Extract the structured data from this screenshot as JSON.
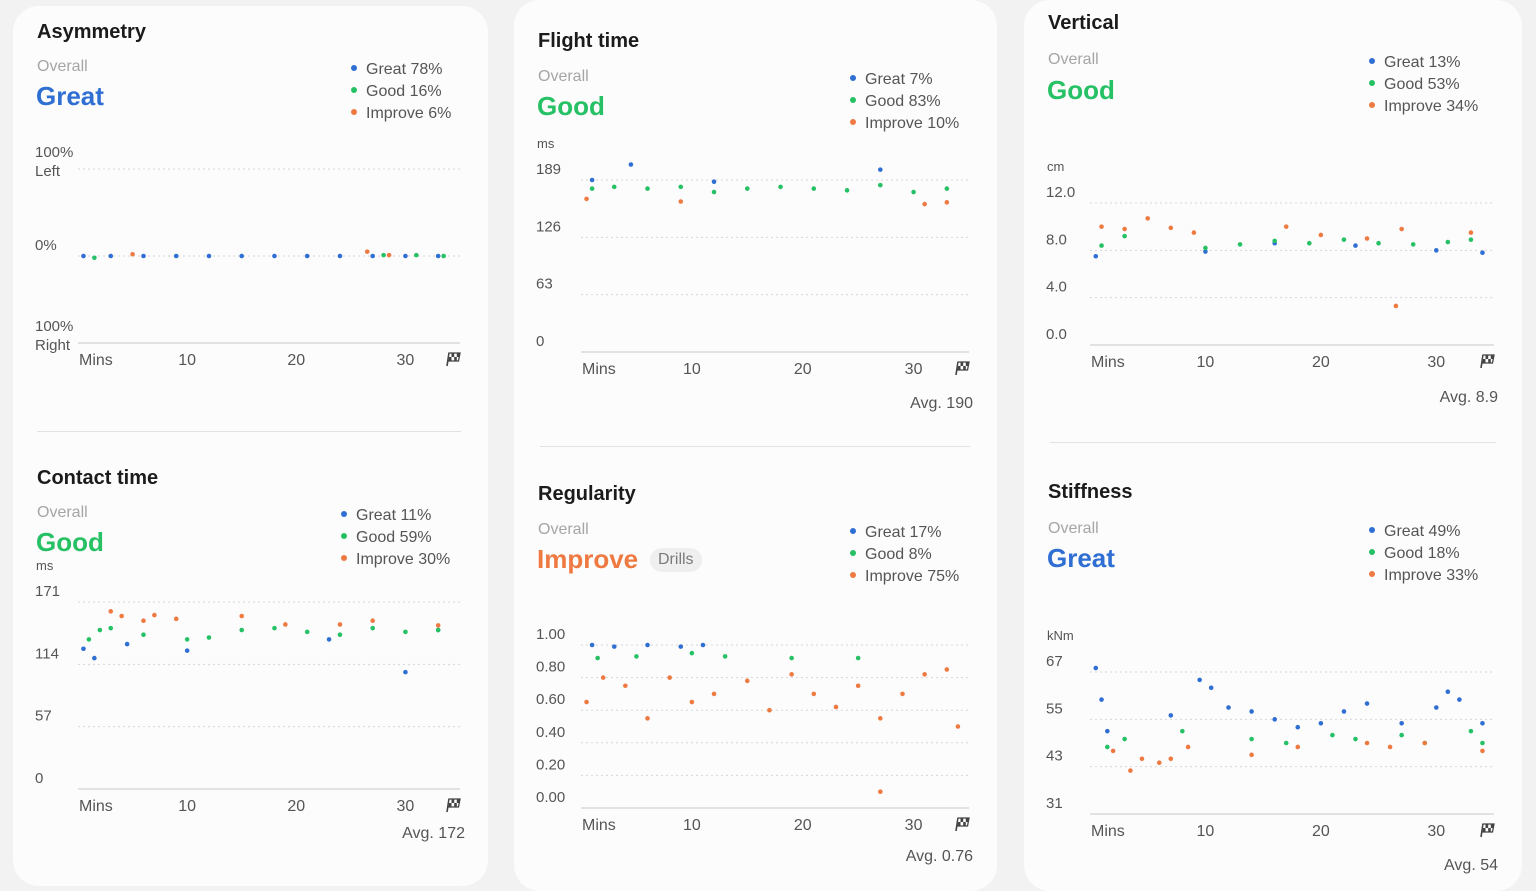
{
  "colors": {
    "great": "#2f6fd3",
    "good": "#26c065",
    "improve": "#ee7a42",
    "grid": "#d6d6d6",
    "axis_text": "#555555"
  },
  "legend_labels": {
    "great": "Great",
    "good": "Good",
    "improve": "Improve"
  },
  "overall_label": "Overall",
  "x_axis": {
    "unit_label": "Mins",
    "ticks": [
      "10",
      "20",
      "30"
    ],
    "finish_icon": "checkered-flag-icon"
  },
  "cards": {
    "asymmetry": {
      "title": "Asymmetry",
      "rating": "Great",
      "great_pct": "78%",
      "good_pct": "16%",
      "improve_pct": "6%",
      "avg": ""
    },
    "contact": {
      "title": "Contact time",
      "rating": "Good",
      "great_pct": "11%",
      "good_pct": "59%",
      "improve_pct": "30%",
      "avg": "Avg. 172"
    },
    "flight": {
      "title": "Flight time",
      "rating": "Good",
      "great_pct": "7%",
      "good_pct": "83%",
      "improve_pct": "10%",
      "avg": "Avg. 190"
    },
    "regularity": {
      "title": "Regularity",
      "rating": "Improve",
      "badge": "Drills",
      "great_pct": "17%",
      "good_pct": "8%",
      "improve_pct": "75%",
      "avg": "Avg. 0.76"
    },
    "vertical": {
      "title": "Vertical",
      "rating": "Good",
      "great_pct": "13%",
      "good_pct": "53%",
      "improve_pct": "34%",
      "avg": "Avg. 8.9"
    },
    "stiffness": {
      "title": "Stiffness",
      "rating": "Great",
      "great_pct": "49%",
      "good_pct": "18%",
      "improve_pct": "33%",
      "avg": "Avg. 54"
    }
  },
  "chart_data": [
    {
      "id": "asymmetry",
      "type": "scatter",
      "ylabel": "",
      "y_ticks": [
        "100%\nLeft",
        "0%",
        "100%\nRight"
      ],
      "ylim": [
        -100,
        100
      ],
      "xlim": [
        0,
        35
      ],
      "x_label": "Mins",
      "x_ticks": [
        10,
        20,
        30
      ],
      "series": [
        {
          "name": "Great",
          "points": [
            [
              0.5,
              0
            ],
            [
              3,
              0
            ],
            [
              6,
              0
            ],
            [
              9,
              0
            ],
            [
              12,
              0
            ],
            [
              15,
              0
            ],
            [
              18,
              0
            ],
            [
              21,
              0
            ],
            [
              24,
              0
            ],
            [
              27,
              0
            ],
            [
              30,
              0
            ],
            [
              33,
              0
            ]
          ]
        },
        {
          "name": "Good",
          "points": [
            [
              1.5,
              -2
            ],
            [
              28,
              1
            ],
            [
              31,
              1
            ],
            [
              33.5,
              0
            ]
          ]
        },
        {
          "name": "Improve",
          "points": [
            [
              5,
              2
            ],
            [
              26.5,
              5
            ],
            [
              28.5,
              1
            ]
          ]
        }
      ]
    },
    {
      "id": "contact",
      "type": "scatter",
      "ylabel": "ms",
      "y_ticks": [
        "171",
        "114",
        "57",
        "0"
      ],
      "ylim": [
        0,
        200
      ],
      "xlim": [
        0,
        35
      ],
      "x_label": "Mins",
      "x_ticks": [
        10,
        20,
        30
      ],
      "series": [
        {
          "name": "Great",
          "points": [
            [
              0.5,
              150
            ],
            [
              1.5,
              140
            ],
            [
              4.5,
              155
            ],
            [
              10,
              148
            ],
            [
              23,
              160
            ],
            [
              30,
              125
            ],
            [
              33,
              170
            ]
          ]
        },
        {
          "name": "Good",
          "points": [
            [
              1,
              160
            ],
            [
              2,
              170
            ],
            [
              3,
              172
            ],
            [
              6,
              165
            ],
            [
              10,
              160
            ],
            [
              12,
              162
            ],
            [
              15,
              170
            ],
            [
              18,
              172
            ],
            [
              21,
              168
            ],
            [
              24,
              165
            ],
            [
              27,
              172
            ],
            [
              30,
              168
            ],
            [
              33,
              170
            ]
          ]
        },
        {
          "name": "Improve",
          "points": [
            [
              3,
              190
            ],
            [
              4,
              185
            ],
            [
              6,
              180
            ],
            [
              7,
              186
            ],
            [
              9,
              182
            ],
            [
              15,
              185
            ],
            [
              19,
              176
            ],
            [
              24,
              176
            ],
            [
              27,
              180
            ],
            [
              33,
              175
            ]
          ]
        }
      ]
    },
    {
      "id": "flight",
      "type": "scatter",
      "ylabel": "ms",
      "y_ticks": [
        "189",
        "126",
        "63",
        "0"
      ],
      "ylim": [
        0,
        200
      ],
      "xlim": [
        0,
        35
      ],
      "x_label": "Mins",
      "x_ticks": [
        10,
        20,
        30
      ],
      "series": [
        {
          "name": "Great",
          "points": [
            [
              1,
              200
            ],
            [
              4.5,
              218
            ],
            [
              12,
              198
            ],
            [
              27,
              212
            ]
          ]
        },
        {
          "name": "Good",
          "points": [
            [
              1,
              190
            ],
            [
              3,
              192
            ],
            [
              6,
              190
            ],
            [
              9,
              192
            ],
            [
              12,
              186
            ],
            [
              15,
              190
            ],
            [
              18,
              192
            ],
            [
              21,
              190
            ],
            [
              24,
              188
            ],
            [
              27,
              194
            ],
            [
              30,
              186
            ],
            [
              33,
              190
            ]
          ]
        },
        {
          "name": "Improve",
          "points": [
            [
              0.5,
              178
            ],
            [
              9,
              175
            ],
            [
              31,
              172
            ],
            [
              33,
              174
            ]
          ]
        }
      ]
    },
    {
      "id": "regularity",
      "type": "scatter",
      "ylabel": "",
      "y_ticks": [
        "1.00",
        "0.80",
        "0.60",
        "0.40",
        "0.20",
        "0.00"
      ],
      "ylim": [
        0,
        1
      ],
      "xlim": [
        0,
        35
      ],
      "x_label": "Mins",
      "x_ticks": [
        10,
        20,
        30
      ],
      "series": [
        {
          "name": "Great",
          "points": [
            [
              1,
              1
            ],
            [
              3,
              0.99
            ],
            [
              6,
              1
            ],
            [
              9,
              0.99
            ],
            [
              11,
              1
            ]
          ]
        },
        {
          "name": "Good",
          "points": [
            [
              1.5,
              0.92
            ],
            [
              5,
              0.93
            ],
            [
              10,
              0.95
            ],
            [
              13,
              0.93
            ],
            [
              19,
              0.92
            ],
            [
              25,
              0.92
            ]
          ]
        },
        {
          "name": "Improve",
          "points": [
            [
              0.5,
              0.65
            ],
            [
              2,
              0.8
            ],
            [
              4,
              0.75
            ],
            [
              6,
              0.55
            ],
            [
              8,
              0.8
            ],
            [
              10,
              0.65
            ],
            [
              12,
              0.7
            ],
            [
              15,
              0.78
            ],
            [
              17,
              0.6
            ],
            [
              19,
              0.82
            ],
            [
              21,
              0.7
            ],
            [
              23,
              0.62
            ],
            [
              25,
              0.75
            ],
            [
              27,
              0.55
            ],
            [
              29,
              0.7
            ],
            [
              31,
              0.82
            ],
            [
              33,
              0.85
            ],
            [
              34,
              0.5
            ],
            [
              27,
              0.1
            ]
          ]
        }
      ]
    },
    {
      "id": "vertical",
      "type": "scatter",
      "ylabel": "cm",
      "y_ticks": [
        "12.0",
        "8.0",
        "4.0",
        "0.0"
      ],
      "ylim": [
        0,
        12
      ],
      "xlim": [
        0,
        35
      ],
      "x_label": "Mins",
      "x_ticks": [
        10,
        20,
        30
      ],
      "series": [
        {
          "name": "Great",
          "points": [
            [
              0.5,
              7.5
            ],
            [
              10,
              7.9
            ],
            [
              16,
              8.6
            ],
            [
              23,
              8.4
            ],
            [
              30,
              8.0
            ],
            [
              34,
              7.8
            ]
          ]
        },
        {
          "name": "Good",
          "points": [
            [
              1,
              8.4
            ],
            [
              3,
              9.2
            ],
            [
              10,
              8.2
            ],
            [
              13,
              8.5
            ],
            [
              16,
              8.8
            ],
            [
              19,
              8.6
            ],
            [
              22,
              8.9
            ],
            [
              25,
              8.6
            ],
            [
              28,
              8.5
            ],
            [
              31,
              8.7
            ],
            [
              33,
              8.9
            ]
          ]
        },
        {
          "name": "Improve",
          "points": [
            [
              1,
              10
            ],
            [
              3,
              9.8
            ],
            [
              5,
              10.7
            ],
            [
              7,
              9.9
            ],
            [
              9,
              9.5
            ],
            [
              17,
              10
            ],
            [
              20,
              9.3
            ],
            [
              24,
              9.0
            ],
            [
              27,
              9.8
            ],
            [
              33,
              9.5
            ],
            [
              26.5,
              3.3
            ]
          ]
        }
      ]
    },
    {
      "id": "stiffness",
      "type": "scatter",
      "ylabel": "kNm",
      "y_ticks": [
        "67",
        "55",
        "43",
        "31"
      ],
      "ylim": [
        31,
        67
      ],
      "xlim": [
        0,
        35
      ],
      "x_label": "Mins",
      "x_ticks": [
        10,
        20,
        30
      ],
      "series": [
        {
          "name": "Great",
          "points": [
            [
              0.5,
              68
            ],
            [
              1,
              60
            ],
            [
              1.5,
              52
            ],
            [
              7,
              56
            ],
            [
              9.5,
              65
            ],
            [
              10.5,
              63
            ],
            [
              12,
              58
            ],
            [
              14,
              57
            ],
            [
              16,
              55
            ],
            [
              18,
              53
            ],
            [
              20,
              54
            ],
            [
              22,
              57
            ],
            [
              24,
              59
            ],
            [
              27,
              54
            ],
            [
              30,
              58
            ],
            [
              31,
              62
            ],
            [
              32,
              60
            ],
            [
              34,
              54
            ]
          ]
        },
        {
          "name": "Good",
          "points": [
            [
              1.5,
              48
            ],
            [
              3,
              50
            ],
            [
              8,
              52
            ],
            [
              14,
              50
            ],
            [
              17,
              49
            ],
            [
              21,
              51
            ],
            [
              23,
              50
            ],
            [
              27,
              51
            ],
            [
              29,
              49
            ],
            [
              33,
              52
            ],
            [
              34,
              49
            ]
          ]
        },
        {
          "name": "Improve",
          "points": [
            [
              2,
              47
            ],
            [
              3.5,
              42
            ],
            [
              4.5,
              45
            ],
            [
              6,
              44
            ],
            [
              7,
              45
            ],
            [
              8.5,
              48
            ],
            [
              14,
              46
            ],
            [
              18,
              48
            ],
            [
              24,
              49
            ],
            [
              26,
              48
            ],
            [
              29,
              49
            ],
            [
              34,
              47
            ]
          ]
        }
      ]
    }
  ]
}
